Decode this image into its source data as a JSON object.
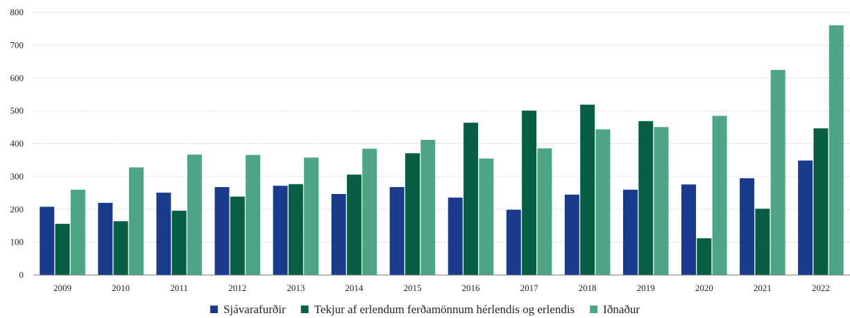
{
  "chart_data": {
    "type": "bar",
    "title": "",
    "xlabel": "",
    "ylabel": "",
    "ylim": [
      0,
      800
    ],
    "yticks": [
      0,
      100,
      200,
      300,
      400,
      500,
      600,
      700,
      800
    ],
    "grid": true,
    "legend_position": "bottom",
    "categories": [
      "2009",
      "2010",
      "2011",
      "2012",
      "2013",
      "2014",
      "2015",
      "2016",
      "2017",
      "2018",
      "2019",
      "2020",
      "2021",
      "2022"
    ],
    "series": [
      {
        "name": "Sjávarafurðir",
        "color": "#1a3a8c",
        "values": [
          208,
          220,
          251,
          268,
          272,
          247,
          268,
          236,
          199,
          245,
          260,
          276,
          295,
          349
        ]
      },
      {
        "name": "Tekjur af erlendum ferðamönnum hérlendis og erlendis",
        "color": "#075e45",
        "values": [
          156,
          164,
          196,
          239,
          277,
          306,
          371,
          464,
          501,
          519,
          469,
          112,
          202,
          447
        ]
      },
      {
        "name": "Iðnaður",
        "color": "#4ea585",
        "values": [
          260,
          328,
          367,
          366,
          358,
          385,
          412,
          355,
          386,
          444,
          451,
          485,
          625,
          761
        ]
      }
    ]
  }
}
